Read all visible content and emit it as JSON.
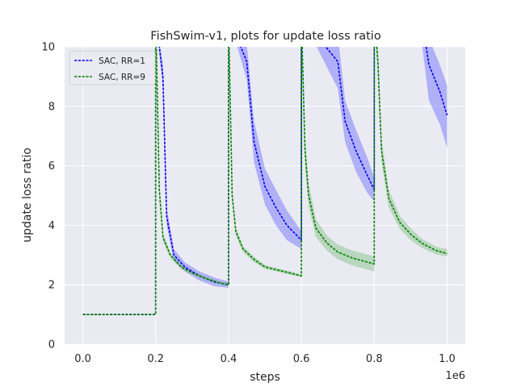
{
  "chart_data": {
    "type": "line",
    "title": "FishSwim-v1, plots for update loss ratio",
    "xlabel": "steps",
    "ylabel": "update loss ratio",
    "x_offset_label": "1e6",
    "xlim": [
      -0.05,
      1.05
    ],
    "ylim": [
      0,
      10
    ],
    "xticks": [
      0.0,
      0.2,
      0.4,
      0.6,
      0.8,
      1.0
    ],
    "xtick_labels": [
      "0.0",
      "0.2",
      "0.4",
      "0.6",
      "0.8",
      "1.0"
    ],
    "yticks": [
      0,
      2,
      4,
      6,
      8,
      10
    ],
    "ytick_labels": [
      "0",
      "2",
      "4",
      "6",
      "8",
      "10"
    ],
    "grid": true,
    "legend_position": "top-left",
    "series": [
      {
        "name": "SAC, RR=1",
        "color": "#0000ee",
        "band_color": "#6b6bff",
        "line_style": "dashed",
        "x": [
          0.0,
          0.2,
          0.2,
          0.22,
          0.23,
          0.25,
          0.28,
          0.32,
          0.36,
          0.4,
          0.4,
          0.45,
          0.47,
          0.5,
          0.53,
          0.56,
          0.6,
          0.6,
          0.7,
          0.72,
          0.75,
          0.78,
          0.8,
          0.8,
          0.93,
          0.95,
          0.98,
          1.0
        ],
        "y": [
          1.0,
          1.0,
          11.0,
          9.0,
          4.3,
          3.0,
          2.6,
          2.3,
          2.1,
          2.0,
          11.0,
          9.5,
          6.8,
          5.3,
          4.6,
          4.0,
          3.5,
          11.0,
          9.5,
          7.5,
          6.5,
          5.7,
          5.2,
          11.0,
          11.0,
          9.4,
          8.5,
          7.7
        ],
        "band_low": [
          1.0,
          1.0,
          11.0,
          8.6,
          4.0,
          2.8,
          2.45,
          2.15,
          1.95,
          1.9,
          11.0,
          8.9,
          6.1,
          4.7,
          4.0,
          3.5,
          3.2,
          11.0,
          8.6,
          6.8,
          5.8,
          5.1,
          4.8,
          11.0,
          10.2,
          8.2,
          7.4,
          6.6
        ],
        "band_high": [
          1.0,
          1.0,
          11.0,
          9.4,
          4.6,
          3.2,
          2.75,
          2.45,
          2.25,
          2.1,
          11.0,
          10.1,
          7.5,
          5.9,
          5.2,
          4.5,
          3.8,
          11.0,
          10.4,
          8.2,
          7.2,
          6.3,
          5.6,
          11.0,
          11.0,
          10.3,
          9.4,
          8.7
        ]
      },
      {
        "name": "SAC, RR=9",
        "color": "#008000",
        "band_color": "#7fbf7f",
        "line_style": "dashed",
        "x": [
          0.0,
          0.2,
          0.2,
          0.21,
          0.22,
          0.24,
          0.27,
          0.3,
          0.34,
          0.38,
          0.4,
          0.4,
          0.41,
          0.42,
          0.44,
          0.47,
          0.5,
          0.55,
          0.6,
          0.6,
          0.61,
          0.62,
          0.64,
          0.67,
          0.7,
          0.74,
          0.8,
          0.8,
          0.81,
          0.82,
          0.84,
          0.87,
          0.9,
          0.93,
          0.97,
          1.0
        ],
        "y": [
          1.0,
          1.0,
          11.0,
          5.2,
          3.6,
          3.0,
          2.6,
          2.4,
          2.2,
          2.05,
          2.0,
          11.0,
          5.0,
          3.8,
          3.2,
          2.85,
          2.6,
          2.45,
          2.3,
          11.0,
          6.5,
          5.0,
          3.9,
          3.4,
          3.1,
          2.9,
          2.7,
          11.0,
          9.5,
          6.5,
          4.9,
          4.1,
          3.7,
          3.4,
          3.15,
          3.05
        ],
        "band_low": [
          1.0,
          1.0,
          11.0,
          5.0,
          3.45,
          2.9,
          2.52,
          2.33,
          2.14,
          2.0,
          1.95,
          11.0,
          4.8,
          3.65,
          3.1,
          2.76,
          2.53,
          2.39,
          2.25,
          11.0,
          6.0,
          4.6,
          3.6,
          3.15,
          2.85,
          2.65,
          2.45,
          11.0,
          9.0,
          6.1,
          4.6,
          3.88,
          3.5,
          3.25,
          3.02,
          2.95
        ],
        "band_high": [
          1.0,
          1.0,
          11.0,
          5.4,
          3.75,
          3.1,
          2.68,
          2.47,
          2.26,
          2.1,
          2.05,
          11.0,
          5.2,
          3.95,
          3.3,
          2.94,
          2.67,
          2.51,
          2.35,
          11.0,
          7.0,
          5.4,
          4.2,
          3.65,
          3.35,
          3.15,
          2.95,
          11.0,
          10.0,
          6.9,
          5.2,
          4.32,
          3.9,
          3.55,
          3.28,
          3.2
        ]
      }
    ]
  }
}
